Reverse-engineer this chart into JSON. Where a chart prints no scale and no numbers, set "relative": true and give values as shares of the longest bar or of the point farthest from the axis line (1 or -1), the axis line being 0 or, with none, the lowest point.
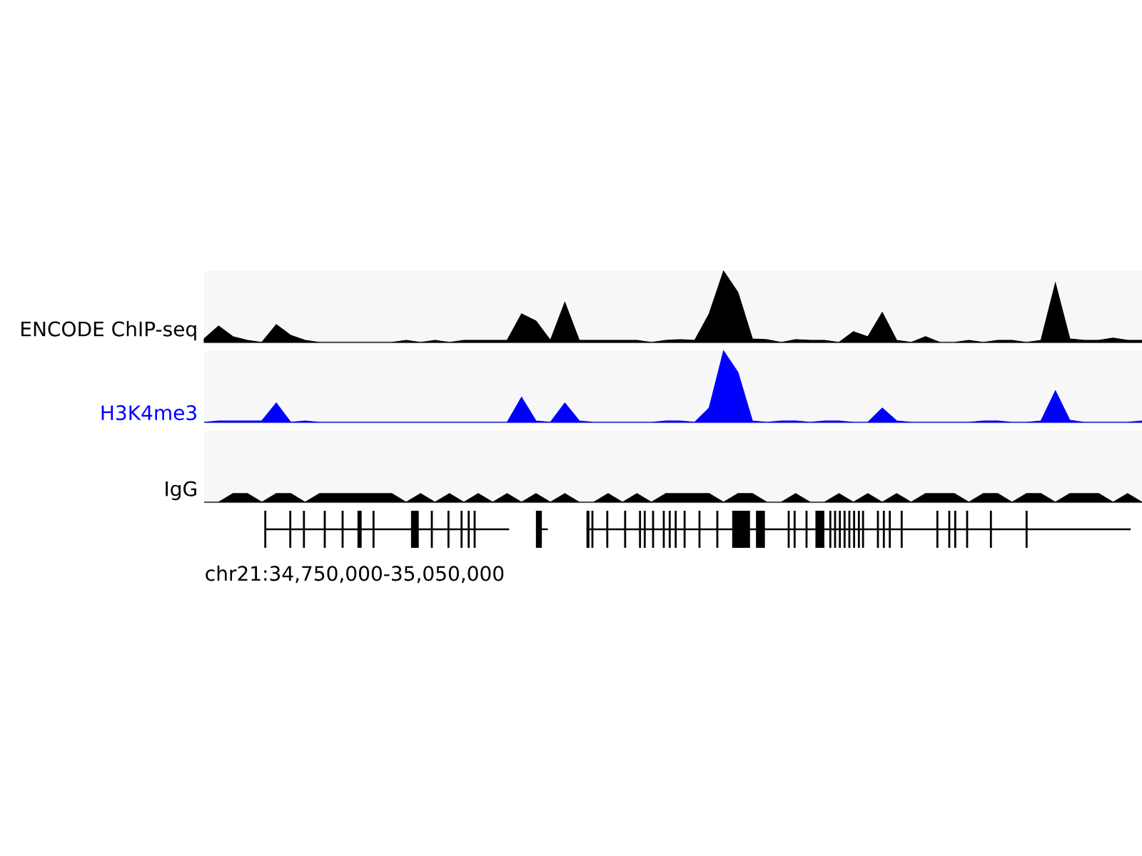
{
  "chart_data": [
    {
      "type": "area",
      "relative": true,
      "categories": [
        null,
        null,
        null,
        null,
        null,
        null,
        null,
        null,
        null,
        null,
        null,
        null,
        null,
        null,
        null,
        null,
        null,
        null,
        null,
        null,
        null,
        null,
        null,
        null,
        null,
        null,
        null,
        null,
        null,
        null,
        null,
        null,
        null,
        null,
        null,
        null,
        null,
        null,
        null,
        null,
        null,
        null,
        null,
        null,
        null,
        null,
        null,
        null,
        null,
        null,
        null,
        null,
        null,
        null,
        null,
        null,
        null,
        null,
        null,
        null,
        null,
        null,
        null,
        null,
        null,
        null
      ],
      "series": [
        {
          "name": "ENCODE ChIP-seq",
          "color": "#000000",
          "values": [
            0.05,
            0.23,
            0.08,
            0.03,
            0,
            0.25,
            0.1,
            0.03,
            0,
            0,
            0,
            0,
            0,
            0,
            0.03,
            0,
            0.03,
            0,
            0.03,
            0.03,
            0.03,
            0.03,
            0.4,
            0.3,
            0.03,
            0.56,
            0.03,
            0.03,
            0.03,
            0.03,
            0.03,
            0,
            0.03,
            0.04,
            0.03,
            0.4,
            1,
            0.7,
            0.05,
            0.04,
            0,
            0.04,
            0.03,
            0.03,
            0,
            0.15,
            0.08,
            0.42,
            0.03,
            0,
            0.08,
            0,
            0,
            0.03,
            0,
            0.03,
            0.03,
            0,
            0.03,
            0.83,
            0.05,
            0.03,
            0.03,
            0.06,
            0.03,
            0.03
          ]
        }
      ]
    },
    {
      "type": "area",
      "relative": true,
      "categories": [
        null,
        null,
        null,
        null,
        null,
        null,
        null,
        null,
        null,
        null,
        null,
        null,
        null,
        null,
        null,
        null,
        null,
        null,
        null,
        null,
        null,
        null,
        null,
        null,
        null,
        null,
        null,
        null,
        null,
        null,
        null,
        null,
        null,
        null,
        null,
        null,
        null,
        null,
        null,
        null,
        null,
        null,
        null,
        null,
        null,
        null,
        null,
        null,
        null,
        null,
        null,
        null,
        null,
        null,
        null,
        null,
        null,
        null,
        null,
        null,
        null,
        null,
        null,
        null,
        null,
        null
      ],
      "series": [
        {
          "name": "H3K4me3",
          "color": "#0000ff",
          "values": [
            0,
            0.02,
            0.02,
            0.02,
            0.02,
            0.27,
            0,
            0.02,
            0,
            0,
            0,
            0,
            0,
            0,
            0,
            0,
            0,
            0,
            0,
            0,
            0,
            0,
            0.35,
            0.02,
            0,
            0.27,
            0.02,
            0,
            0,
            0,
            0,
            0,
            0.02,
            0.02,
            0,
            0.2,
            1,
            0.7,
            0.02,
            0,
            0.02,
            0.02,
            0,
            0.02,
            0.02,
            0,
            0,
            0.2,
            0.02,
            0,
            0,
            0,
            0,
            0,
            0.02,
            0.02,
            0,
            0,
            0.02,
            0.44,
            0.03,
            0,
            0,
            0,
            0,
            0.02
          ]
        }
      ]
    },
    {
      "type": "area",
      "relative": true,
      "categories": [
        null,
        null,
        null,
        null,
        null,
        null,
        null,
        null,
        null,
        null,
        null,
        null,
        null,
        null,
        null,
        null,
        null,
        null,
        null,
        null,
        null,
        null,
        null,
        null,
        null,
        null,
        null,
        null,
        null,
        null,
        null,
        null,
        null,
        null,
        null,
        null,
        null,
        null,
        null,
        null,
        null,
        null,
        null,
        null,
        null,
        null,
        null,
        null,
        null,
        null,
        null,
        null,
        null,
        null,
        null,
        null,
        null,
        null,
        null,
        null,
        null,
        null,
        null,
        null,
        null,
        null
      ],
      "series": [
        {
          "name": "IgG",
          "color": "#000000",
          "values": [
            0,
            0,
            1,
            1,
            0,
            1,
            1,
            0,
            1,
            1,
            1,
            1,
            1,
            1,
            0,
            1,
            0,
            1,
            0,
            1,
            0,
            1,
            0,
            1,
            0,
            1,
            0,
            0,
            1,
            0,
            1,
            0,
            1,
            1,
            1,
            1,
            0,
            1,
            1,
            0,
            0,
            1,
            0,
            0,
            1,
            0,
            1,
            0,
            1,
            0,
            1,
            1,
            1,
            0,
            1,
            1,
            0,
            1,
            1,
            0,
            1,
            1,
            1,
            0,
            1,
            0
          ]
        }
      ],
      "annotations": [
        "chr21:34,750,000-35,050,000"
      ]
    }
  ]
}
